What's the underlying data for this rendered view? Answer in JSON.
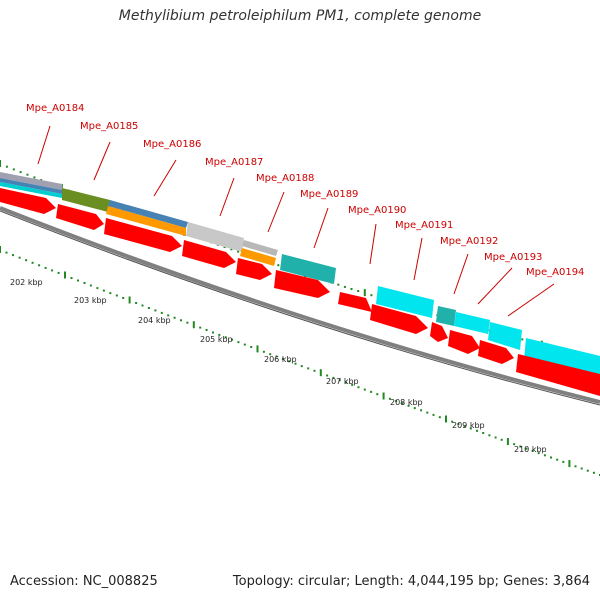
{
  "title": "Methylibium petroleiphilum PM1, complete genome",
  "footer": {
    "accession": "Accession: NC_008825",
    "topology": "Topology: circular; Length: 4,044,195 bp; Genes: 3,864"
  },
  "colors": {
    "gene_label": "#cc0000",
    "backbone": "#808080",
    "tick": "#228822",
    "cds": "#ff0000",
    "cyan": "#00e5ee",
    "teal": "#20b2aa",
    "orange": "#ff9900",
    "olive": "#6b8e23",
    "steelblue": "#4682b4",
    "grey": "#c0c0c0"
  },
  "gene_labels": [
    "Mpe_A0184",
    "Mpe_A0185",
    "Mpe_A0186",
    "Mpe_A0187",
    "Mpe_A0188",
    "Mpe_A0189",
    "Mpe_A0190",
    "Mpe_A0191",
    "Mpe_A0192",
    "Mpe_A0193",
    "Mpe_A0194"
  ],
  "kbp_labels": [
    "202 kbp",
    "203 kbp",
    "204 kbp",
    "205 kbp",
    "206 kbp",
    "207 kbp",
    "208 kbp",
    "209 kbp",
    "210 kbp"
  ]
}
